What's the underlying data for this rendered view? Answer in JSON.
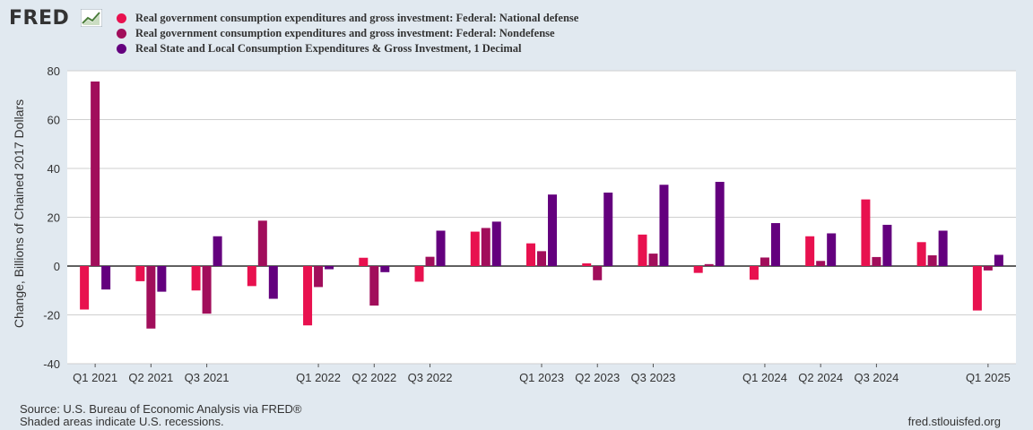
{
  "brand": "FRED",
  "colors": {
    "national_defense": "#e8114f",
    "nondefense": "#a10e5b",
    "state_local": "#64007e",
    "plot_bg": "#ffffff",
    "page_bg": "#e1e9f0",
    "grid": "#cfcfcf"
  },
  "footer": {
    "source": "Source: U.S. Bureau of Economic Analysis via FRED®",
    "note": "Shaded areas indicate U.S. recessions.",
    "site": "fred.stlouisfed.org"
  },
  "chart_data": {
    "type": "bar",
    "title": "",
    "ylabel": "Change, Billions of Chained 2017 Dollars",
    "xlabel": "",
    "ylim": [
      -40,
      80
    ],
    "yticks": [
      -40,
      -20,
      0,
      20,
      40,
      60,
      80
    ],
    "grid": true,
    "legend_position": "top-left",
    "categories": [
      "Q1 2021",
      "Q2 2021",
      "Q3 2021",
      "Q4 2021",
      "Q1 2022",
      "Q2 2022",
      "Q3 2022",
      "Q4 2022",
      "Q1 2023",
      "Q2 2023",
      "Q3 2023",
      "Q4 2023",
      "Q1 2024",
      "Q2 2024",
      "Q3 2024",
      "Q4 2024",
      "Q1 2025"
    ],
    "xtick_labels": [
      "Q1 2021",
      "Q2 2021",
      "Q3 2021",
      "Q1 2022",
      "Q2 2022",
      "Q3 2022",
      "Q1 2023",
      "Q2 2023",
      "Q3 2023",
      "Q1 2024",
      "Q2 2024",
      "Q3 2024",
      "Q1 2025"
    ],
    "xtick_label_categories": [
      "Q1 2021",
      "Q2 2021",
      "Q3 2021",
      "Q1 2022",
      "Q2 2022",
      "Q3 2022",
      "Q1 2023",
      "Q2 2023",
      "Q3 2023",
      "Q1 2024",
      "Q2 2024",
      "Q3 2024",
      "Q1 2025"
    ],
    "series": [
      {
        "name": "Real government consumption expenditures and gross investment: Federal: National defense",
        "color": "#e8114f",
        "values": [
          -17.8,
          -6.2,
          -10.0,
          -8.2,
          -24.3,
          3.4,
          -6.4,
          14.1,
          9.3,
          1.1,
          12.9,
          -2.8,
          -5.6,
          12.2,
          27.3,
          9.8,
          -18.2
        ]
      },
      {
        "name": "Real government consumption expenditures and gross investment: Federal: Nondefense",
        "color": "#a10e5b",
        "values": [
          75.6,
          -25.6,
          -19.5,
          18.6,
          -8.6,
          -16.2,
          3.8,
          15.6,
          6.1,
          -5.8,
          5.1,
          0.8,
          3.5,
          2.1,
          3.7,
          4.4,
          -1.8
        ]
      },
      {
        "name": "Real State and Local Consumption Expenditures & Gross Investment, 1 Decimal",
        "color": "#64007e",
        "values": [
          -9.6,
          -10.5,
          12.2,
          -13.4,
          -1.3,
          -2.5,
          14.5,
          18.2,
          29.3,
          30.1,
          33.3,
          34.5,
          17.6,
          13.4,
          16.9,
          14.5,
          4.6
        ]
      }
    ]
  }
}
